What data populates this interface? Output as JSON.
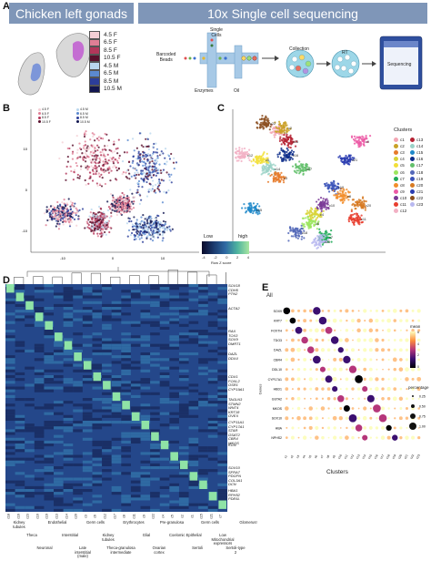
{
  "panels": {
    "A": "A",
    "B": "B",
    "C": "C",
    "D": "D",
    "E": "E"
  },
  "banner": {
    "left": "Chicken left gonads",
    "right": "10x Single cell sequencing"
  },
  "stages": [
    {
      "label": "4.5 F",
      "color": "#f4cfd5"
    },
    {
      "label": "6.5 F",
      "color": "#e07e95"
    },
    {
      "label": "8.5 F",
      "color": "#b2365a"
    },
    {
      "label": "10.5 F",
      "color": "#5a0f2c"
    },
    {
      "label": "4.5 M",
      "color": "#b9d7ee"
    },
    {
      "label": "6.5 M",
      "color": "#5b89cf"
    },
    {
      "label": "8.5 M",
      "color": "#2c3e9a"
    },
    {
      "label": "10.5 M",
      "color": "#121650"
    }
  ],
  "workflow": {
    "single_cells": "Single\nCells",
    "barcoded_beads": "Barcoded\nBeads",
    "enzymes": "Enzymes",
    "oil": "Oil",
    "collection": "Collection",
    "rt": "RT",
    "sequencing": "Sequencing"
  },
  "umap_b": {
    "legend": [
      "4.5 F",
      "4.5 M",
      "6.5 F",
      "6.5 M",
      "8.5 F",
      "8.5 M",
      "10.5 F",
      "10.5 M"
    ],
    "xticks": [
      "-10",
      "0",
      "10"
    ],
    "yticks": [
      "-10",
      "0",
      "10"
    ]
  },
  "clusters_title": "Clusters",
  "clusters": [
    {
      "id": "c1",
      "color": "#f3a6b3"
    },
    {
      "id": "c13",
      "color": "#b52233"
    },
    {
      "id": "c2",
      "color": "#c9a227"
    },
    {
      "id": "c14",
      "color": "#9bd2c7"
    },
    {
      "id": "c3",
      "color": "#e67b2b"
    },
    {
      "id": "c15",
      "color": "#1e88c9"
    },
    {
      "id": "c4",
      "color": "#d8d337"
    },
    {
      "id": "c16",
      "color": "#0d2d8a"
    },
    {
      "id": "c5",
      "color": "#f2df38"
    },
    {
      "id": "c17",
      "color": "#63c06b"
    },
    {
      "id": "c6",
      "color": "#9be65e"
    },
    {
      "id": "c18",
      "color": "#5468b9"
    },
    {
      "id": "c7",
      "color": "#1faa58"
    },
    {
      "id": "c19",
      "color": "#3b53b9"
    },
    {
      "id": "c8",
      "color": "#f28e2b"
    },
    {
      "id": "c20",
      "color": "#d77a23"
    },
    {
      "id": "c9",
      "color": "#ec5aa6"
    },
    {
      "id": "c21",
      "color": "#2a3cb0"
    },
    {
      "id": "c10",
      "color": "#7a3a96"
    },
    {
      "id": "c22",
      "color": "#8b4e1e"
    },
    {
      "id": "c11",
      "color": "#e83e2f"
    },
    {
      "id": "c23",
      "color": "#b8b8f0"
    },
    {
      "id": "c12",
      "color": "#f2b0c4"
    }
  ],
  "heatmap_scale": {
    "low": "Low",
    "high": "high",
    "ticks": [
      "-4",
      "-2",
      "0",
      "2",
      "4"
    ],
    "caption": "Row Z score"
  },
  "gene_groups": [
    [
      "SOX18",
      "CDH5",
      "PTN2"
    ],
    [
      "ACTA2"
    ],
    [
      "RAX",
      "TOX3",
      "SOX9",
      "DMRT1"
    ],
    [
      "DAZL",
      "DDX4"
    ],
    [
      "CDX1",
      "FOXL2",
      "OSR1",
      "CYP19A1"
    ],
    [
      "TAGLN3",
      "STMN2",
      "WNT4",
      "KRT18",
      "OVEX"
    ],
    [
      "CYP11A1",
      "CYP17A1",
      "STAR",
      "GSAT2",
      "CBR4",
      "MKOS"
    ],
    [
      "KGN"
    ],
    [
      "SOX10",
      "SFRA7",
      "PDGFN",
      "COL3A1",
      "DCN"
    ],
    [
      "HBA1",
      "RPH52",
      "PDE6L"
    ]
  ],
  "heatmap_cols": [
    "c18",
    "c16",
    "c23",
    "c10",
    "c19",
    "c13",
    "c14",
    "c20",
    "c3",
    "c6",
    "c12",
    "c17",
    "c8",
    "c11",
    "c9",
    "c22",
    "c4",
    "c5",
    "c2",
    "c1",
    "c15",
    "c21",
    "c7"
  ],
  "heatmap_bottom_labels": [
    "Kidney\ntubules",
    "Theca",
    "Neuronal",
    "Endothelial",
    "Interstitial",
    "Late\ninterstitial\n(male)",
    "Germ cells",
    "Kidney\ntubules",
    "Theca-granulosa\nintermediate",
    "Erythrocytes",
    "Glial",
    "Ovarian\ncortex",
    "Pre-granulosa",
    "Coelomic Epithelial",
    "Sertoli",
    "Germ cells",
    "Low\nMitochondrial\nexpressors",
    "Sertoli-type\n2",
    "Glomerus!"
  ],
  "dotplot": {
    "title": "All",
    "genes": [
      "SOX9",
      "KRT7",
      "FOXTH",
      "TDO3",
      "DAZL",
      "CBR4",
      "DDL10",
      "CYP17A1",
      "HBD1",
      "GSTA2",
      "MKOS",
      "SOX10",
      "HBA",
      "NPHS2"
    ],
    "xlabel": "Clusters",
    "ylabel": "Genes",
    "clusters": [
      "c1",
      "c2",
      "c3",
      "c4",
      "c5",
      "c6",
      "c7",
      "c8",
      "c9",
      "c10",
      "c11",
      "c12",
      "c13",
      "c14",
      "c15",
      "c16",
      "c17",
      "c18",
      "c19",
      "c20",
      "c21",
      "c22",
      "c23"
    ],
    "mean_label": "mean",
    "mean_ticks": [
      "6",
      "4",
      "2",
      "0"
    ],
    "pct_label": "percentage",
    "pct_ticks": [
      "0.25",
      "0.50",
      "0.75",
      "1.00"
    ]
  }
}
